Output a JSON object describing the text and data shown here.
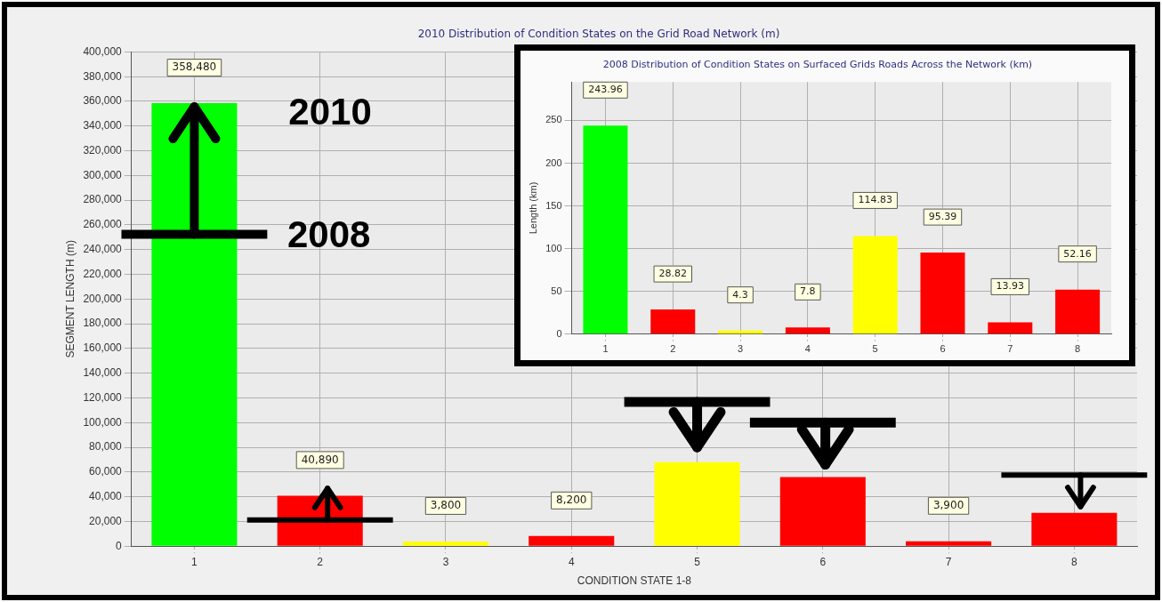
{
  "chart_data": [
    {
      "type": "bar",
      "title": "2010 Distribution of Condition States on the Grid Road Network (m)",
      "xlabel": "CONDITION STATE 1-8",
      "ylabel": "SEGMENT LENGTH (m)",
      "categories": [
        "1",
        "2",
        "3",
        "4",
        "5",
        "6",
        "7",
        "8"
      ],
      "values": [
        358480,
        40890,
        3800,
        8200,
        68000,
        56000,
        3900,
        27000
      ],
      "colors": [
        "#00ff00",
        "#ff0000",
        "#ffff00",
        "#ff0000",
        "#ffff00",
        "#ff0000",
        "#ff0000",
        "#ff0000"
      ],
      "value_labels": [
        "358,480",
        "40,890",
        "3,800",
        "8,200",
        null,
        null,
        "3,900",
        null
      ],
      "ylim": [
        0,
        400000
      ],
      "yticks": [
        {
          "value": 0,
          "label": "0"
        },
        {
          "value": 20000,
          "label": "20,000"
        },
        {
          "value": 40000,
          "label": "40,000"
        },
        {
          "value": 60000,
          "label": "60,000"
        },
        {
          "value": 80000,
          "label": "80,000"
        },
        {
          "value": 100000,
          "label": "100,000"
        },
        {
          "value": 120000,
          "label": "120,000"
        },
        {
          "value": 140000,
          "label": "140,000"
        },
        {
          "value": 160000,
          "label": "160,000"
        },
        {
          "value": 180000,
          "label": "180,000"
        },
        {
          "value": 200000,
          "label": "200,000"
        },
        {
          "value": 220000,
          "label": "220,000"
        },
        {
          "value": 240000,
          "label": "240,000"
        },
        {
          "value": 260000,
          "label": "260,000"
        },
        {
          "value": 280000,
          "label": "280,000"
        },
        {
          "value": 300000,
          "label": "300,000"
        },
        {
          "value": 320000,
          "label": "320,000"
        },
        {
          "value": 340000,
          "label": "340,000"
        },
        {
          "value": 360000,
          "label": "360,000"
        },
        {
          "value": 380000,
          "label": "380,000"
        },
        {
          "value": 400000,
          "label": "400,000"
        }
      ],
      "grid": true,
      "legend": false,
      "annotations": [
        "2010",
        "2008"
      ]
    },
    {
      "type": "bar",
      "title": "2008 Distribution of Condition States on Surfaced Grids Roads Across the Network (km)",
      "ylabel": "Length (km)",
      "categories": [
        "1",
        "2",
        "3",
        "4",
        "5",
        "6",
        "7",
        "8"
      ],
      "values": [
        243.96,
        28.82,
        4.3,
        7.8,
        114.83,
        95.39,
        13.93,
        52.16
      ],
      "colors": [
        "#00ff00",
        "#ff0000",
        "#ffff00",
        "#ff0000",
        "#ffff00",
        "#ff0000",
        "#ff0000",
        "#ff0000"
      ],
      "data_labels": true,
      "ylim": [
        0,
        295
      ],
      "yticks": [
        0,
        50,
        100,
        150,
        200,
        250
      ],
      "grid": true,
      "legend": false
    }
  ]
}
